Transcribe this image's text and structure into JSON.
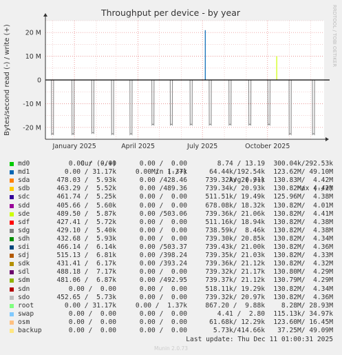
{
  "chart_data": {
    "type": "line",
    "title": "Throughput per device - by year",
    "ylabel": "Bytes/second read (-) / write (+)",
    "ylim": [
      -25000000,
      25000000
    ],
    "y_ticks": [
      {
        "value": 20000000,
        "label": "20 M"
      },
      {
        "value": 10000000,
        "label": "10 M"
      },
      {
        "value": 0,
        "label": "0"
      },
      {
        "value": -10000000,
        "label": "-10 M"
      },
      {
        "value": -20000000,
        "label": "-20 M"
      }
    ],
    "x_range": [
      "2024-11-21",
      "2025-12-20"
    ],
    "x_ticks": [
      {
        "date": "2025-01-01",
        "label": "January 2025"
      },
      {
        "date": "2025-04-01",
        "label": "April 2025"
      },
      {
        "date": "2025-07-01",
        "label": "July 2025"
      },
      {
        "date": "2025-10-01",
        "label": "October 2025"
      }
    ],
    "grid": true,
    "read_dips": {
      "series": "sda",
      "color": "#8a8a8a",
      "points": [
        {
          "date": "2024-12-01",
          "value": -21500000
        },
        {
          "date": "2024-12-30",
          "value": -21500000
        },
        {
          "date": "2025-01-27",
          "value": -21000000
        },
        {
          "date": "2025-02-24",
          "value": -21500000
        },
        {
          "date": "2025-03-22",
          "value": -21500000
        },
        {
          "date": "2025-04-22",
          "value": -17500000
        },
        {
          "date": "2025-05-18",
          "value": -17500000
        },
        {
          "date": "2025-06-15",
          "value": -17500000
        },
        {
          "date": "2025-07-12",
          "value": -17500000
        },
        {
          "date": "2025-08-09",
          "value": -17500000
        },
        {
          "date": "2025-09-06",
          "value": -17500000
        },
        {
          "date": "2025-10-03",
          "value": -17500000
        },
        {
          "date": "2025-11-02",
          "value": -21500000
        },
        {
          "date": "2025-12-05",
          "value": -21500000
        }
      ]
    },
    "write_spikes": [
      {
        "series": "md1",
        "date": "2025-07-05",
        "value": 21000000,
        "color": "#0066b3"
      },
      {
        "series": "sdm",
        "date": "2025-10-14",
        "value": 10000000,
        "color": "#ccff00"
      }
    ]
  },
  "side_text": "RRDTOOL / TOBI OETIKER",
  "legend": {
    "headers": {
      "cur": "Cur (-/+)",
      "min": "Min (-/+)",
      "avg": "Avg (-/+)",
      "max": "Max (-/+)"
    },
    "rows": [
      {
        "name": "md0",
        "color": "#00cc00",
        "cur": "0.00 /  0.00",
        "min": "0.00 /  0.00",
        "avg": "8.74 / 13.19",
        "max": "300.04k/292.53k"
      },
      {
        "name": "md1",
        "color": "#0066b3",
        "cur": "0.00 / 31.17k",
        "min": "0.00 /  1.37k",
        "avg": "64.44k/192.54k",
        "max": "123.62M/ 49.10M"
      },
      {
        "name": "sda",
        "color": "#ff8000",
        "cur": "478.03 /  5.93k",
        "min": "0.00 /428.46",
        "avg": "739.32k/ 20.91k",
        "max": "130.83M/  4.42M"
      },
      {
        "name": "sdb",
        "color": "#ffcc00",
        "cur": "463.29 /  5.52k",
        "min": "0.00 /489.36",
        "avg": "739.34k/ 20.93k",
        "max": "130.82M/  4.42M"
      },
      {
        "name": "sdc",
        "color": "#330099",
        "cur": "461.74 /  5.25k",
        "min": "0.00 /  0.00",
        "avg": "511.51k/ 19.49k",
        "max": "125.96M/  4.38M"
      },
      {
        "name": "sdd",
        "color": "#990099",
        "cur": "405.66 /  5.60k",
        "min": "0.00 /  0.00",
        "avg": "678.08k/ 18.32k",
        "max": "130.82M/  4.01M"
      },
      {
        "name": "sde",
        "color": "#ccff00",
        "cur": "489.50 /  5.87k",
        "min": "0.00 /503.06",
        "avg": "739.36k/ 21.06k",
        "max": "130.82M/  4.41M"
      },
      {
        "name": "sdf",
        "color": "#ff0000",
        "cur": "427.41 /  5.72k",
        "min": "0.00 /  0.00",
        "avg": "511.16k/ 18.94k",
        "max": "130.82M/  4.38M"
      },
      {
        "name": "sdg",
        "color": "#808080",
        "cur": "429.10 /  5.40k",
        "min": "0.00 /  0.00",
        "avg": "738.59k/  8.46k",
        "max": "130.82M/  4.38M"
      },
      {
        "name": "sdh",
        "color": "#008f00",
        "cur": "432.68 /  5.93k",
        "min": "0.00 /  0.00",
        "avg": "739.30k/ 20.85k",
        "max": "130.82M/  4.34M"
      },
      {
        "name": "sdi",
        "color": "#00487d",
        "cur": "466.14 /  6.14k",
        "min": "0.00 /503.37",
        "avg": "739.43k/ 21.00k",
        "max": "130.82M/  4.36M"
      },
      {
        "name": "sdj",
        "color": "#b35a00",
        "cur": "515.13 /  6.81k",
        "min": "0.00 /398.24",
        "avg": "739.35k/ 21.03k",
        "max": "130.82M/  4.33M"
      },
      {
        "name": "sdk",
        "color": "#b38f00",
        "cur": "431.41 /  6.17k",
        "min": "0.00 /393.24",
        "avg": "739.36k/ 21.12k",
        "max": "130.82M/  4.32M"
      },
      {
        "name": "sdl",
        "color": "#6b006b",
        "cur": "488.18 /  7.17k",
        "min": "0.00 /  0.00",
        "avg": "739.32k/ 21.17k",
        "max": "130.80M/  4.29M"
      },
      {
        "name": "sdm",
        "color": "#8fb300",
        "cur": "481.06 /  6.87k",
        "min": "0.00 /492.95",
        "avg": "739.37k/ 21.12k",
        "max": "130.79M/  4.29M"
      },
      {
        "name": "sdn",
        "color": "#b30000",
        "cur": "0.00 /  0.00",
        "min": "0.00 /  0.00",
        "avg": "518.11k/ 19.29k",
        "max": "130.82M/  4.34M"
      },
      {
        "name": "sdo",
        "color": "#bebebe",
        "cur": "452.65 /  5.73k",
        "min": "0.00 /  0.00",
        "avg": "739.32k/ 20.97k",
        "max": "130.82M/  4.36M"
      },
      {
        "name": "root",
        "color": "#80ff80",
        "cur": "0.00 / 31.17k",
        "min": "0.00 /  1.37k",
        "avg": "867.20 /  9.88k",
        "max": "8.28M/ 28.93M"
      },
      {
        "name": "swap",
        "color": "#80c9ff",
        "cur": "0.00 /  0.00",
        "min": "0.00 /  0.00",
        "avg": "4.41 /  2.80",
        "max": "115.13k/ 34.97k"
      },
      {
        "name": "osm",
        "color": "#ffc080",
        "cur": "0.00 /  0.00",
        "min": "0.00 /  0.00",
        "avg": "61.68k/ 12.29k",
        "max": "123.60M/ 16.45M"
      },
      {
        "name": "backup",
        "color": "#ffe680",
        "cur": "0.00 /  0.00",
        "min": "0.00 /  0.00",
        "avg": "5.73k/414.66k",
        "max": "37.25M/ 49.09M"
      }
    ]
  },
  "last_update": "Last update: Thu Dec 11 01:00:31 2025",
  "munin_version": "Munin 2.0.73"
}
